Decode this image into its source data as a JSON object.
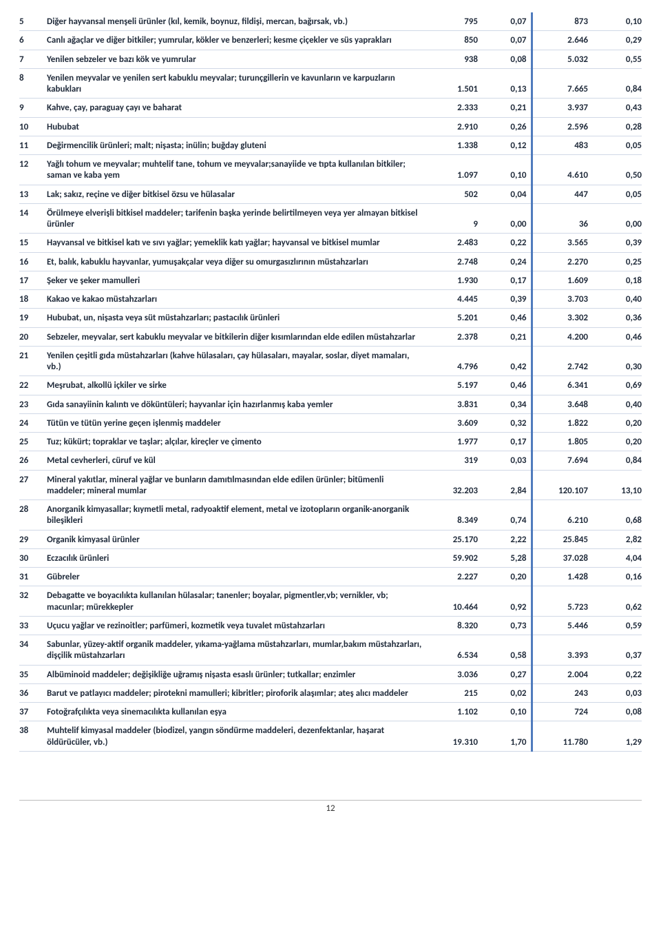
{
  "columns": {
    "desc_width": 460,
    "val_width": 82
  },
  "text_color": "#1f2a3a",
  "border_color": "#d0d8e6",
  "stripe_color": "#4f7bbd",
  "page_number": "12",
  "rows": [
    {
      "n": "5",
      "desc": "Diğer hayvansal menşeli ürünler (kıl, kemik, boynuz, fildişi, mercan, bağırsak, vb.)",
      "v1": "795",
      "v2": "0,07",
      "v3": "873",
      "v4": "0,10"
    },
    {
      "n": "6",
      "desc": "Canlı ağaçlar ve diğer bitkiler; yumrular, kökler ve benzerleri; kesme çiçekler ve süs yaprakları",
      "v1": "850",
      "v2": "0,07",
      "v3": "2.646",
      "v4": "0,29"
    },
    {
      "n": "7",
      "desc": "Yenilen sebzeler ve bazı kök ve yumrular",
      "v1": "938",
      "v2": "0,08",
      "v3": "5.032",
      "v4": "0,55"
    },
    {
      "n": "8",
      "desc": "Yenilen meyvalar ve yenilen sert kabuklu meyvalar; turunçgillerin ve kavunların ve karpuzların kabukları",
      "v1": "1.501",
      "v2": "0,13",
      "v3": "7.665",
      "v4": "0,84"
    },
    {
      "n": "9",
      "desc": "Kahve, çay, paraguay çayı ve baharat",
      "v1": "2.333",
      "v2": "0,21",
      "v3": "3.937",
      "v4": "0,43"
    },
    {
      "n": "10",
      "desc": "Hububat",
      "v1": "2.910",
      "v2": "0,26",
      "v3": "2.596",
      "v4": "0,28"
    },
    {
      "n": "11",
      "desc": "Değirmencilik ürünleri; malt; nişasta; inülin; buğday gluteni",
      "v1": "1.338",
      "v2": "0,12",
      "v3": "483",
      "v4": "0,05"
    },
    {
      "n": "12",
      "desc": "Yağlı tohum ve meyvalar; muhtelif tane, tohum ve meyvalar;sanayiide ve tıpta kullanılan bitkiler; saman ve kaba yem",
      "v1": "1.097",
      "v2": "0,10",
      "v3": "4.610",
      "v4": "0,50"
    },
    {
      "n": "13",
      "desc": "Lak; sakız, reçine ve diğer bitkisel özsu ve hülasalar",
      "v1": "502",
      "v2": "0,04",
      "v3": "447",
      "v4": "0,05"
    },
    {
      "n": "14",
      "desc": "Örülmeye elverişli bitkisel maddeler; tarifenin başka yerinde belirtilmeyen veya yer almayan bitkisel ürünler",
      "v1": "9",
      "v2": "0,00",
      "v3": "36",
      "v4": "0,00"
    },
    {
      "n": "15",
      "desc": "Hayvansal ve bitkisel katı ve sıvı yağlar; yemeklik katı yağlar; hayvansal ve bitkisel mumlar",
      "v1": "2.483",
      "v2": "0,22",
      "v3": "3.565",
      "v4": "0,39"
    },
    {
      "n": "16",
      "desc": "Et, balık, kabuklu hayvanlar, yumuşakçalar veya diğer su omurgasızlırının müstahzarları",
      "v1": "2.748",
      "v2": "0,24",
      "v3": "2.270",
      "v4": "0,25"
    },
    {
      "n": "17",
      "desc": "Şeker ve şeker mamulleri",
      "v1": "1.930",
      "v2": "0,17",
      "v3": "1.609",
      "v4": "0,18"
    },
    {
      "n": "18",
      "desc": "Kakao ve kakao müstahzarları",
      "v1": "4.445",
      "v2": "0,39",
      "v3": "3.703",
      "v4": "0,40"
    },
    {
      "n": "19",
      "desc": "Hububat, un, nişasta veya süt müstahzarları; pastacılık ürünleri",
      "v1": "5.201",
      "v2": "0,46",
      "v3": "3.302",
      "v4": "0,36"
    },
    {
      "n": "20",
      "desc": "Sebzeler, meyvalar, sert kabuklu meyvalar ve bitkilerin diğer kısımlarından elde edilen müstahzarlar",
      "v1": "2.378",
      "v2": "0,21",
      "v3": "4.200",
      "v4": "0,46"
    },
    {
      "n": "21",
      "desc": "Yenilen çeşitli gıda müstahzarları (kahve hülasaları, çay hülasaları, mayalar, soslar, diyet mamaları, vb.)",
      "v1": "4.796",
      "v2": "0,42",
      "v3": "2.742",
      "v4": "0,30"
    },
    {
      "n": "22",
      "desc": "Meşrubat, alkollü içkiler ve sirke",
      "v1": "5.197",
      "v2": "0,46",
      "v3": "6.341",
      "v4": "0,69"
    },
    {
      "n": "23",
      "desc": "Gıda sanayiinin kalıntı ve döküntüleri; hayvanlar için hazırlanmış kaba yemler",
      "v1": "3.831",
      "v2": "0,34",
      "v3": "3.648",
      "v4": "0,40"
    },
    {
      "n": "24",
      "desc": "Tütün ve tütün yerine geçen işlenmiş maddeler",
      "v1": "3.609",
      "v2": "0,32",
      "v3": "1.822",
      "v4": "0,20"
    },
    {
      "n": "25",
      "desc": "Tuz; kükürt; topraklar ve taşlar; alçılar, kireçler ve çimento",
      "v1": "1.977",
      "v2": "0,17",
      "v3": "1.805",
      "v4": "0,20"
    },
    {
      "n": "26",
      "desc": "Metal cevherleri, cüruf ve kül",
      "v1": "319",
      "v2": "0,03",
      "v3": "7.694",
      "v4": "0,84"
    },
    {
      "n": "27",
      "desc": "Mineral yakıtlar, mineral yağlar ve bunların damıtılmasından elde edilen ürünler; bitümenli maddeler; mineral mumlar",
      "v1": "32.203",
      "v2": "2,84",
      "v3": "120.107",
      "v4": "13,10"
    },
    {
      "n": "28",
      "desc": "Anorganik kimyasallar; kıymetli metal, radyoaktif element, metal ve izotopların organik-anorganik bileşikleri",
      "v1": "8.349",
      "v2": "0,74",
      "v3": "6.210",
      "v4": "0,68"
    },
    {
      "n": "29",
      "desc": "Organik kimyasal ürünler",
      "v1": "25.170",
      "v2": "2,22",
      "v3": "25.845",
      "v4": "2,82"
    },
    {
      "n": "30",
      "desc": "Eczacılık ürünleri",
      "v1": "59.902",
      "v2": "5,28",
      "v3": "37.028",
      "v4": "4,04"
    },
    {
      "n": "31",
      "desc": "Gübreler",
      "v1": "2.227",
      "v2": "0,20",
      "v3": "1.428",
      "v4": "0,16"
    },
    {
      "n": "32",
      "desc": "Debagatte ve boyacılıkta kullanılan hülasalar; tanenler; boyalar, pigmentler,vb; vernikler, vb; macunlar; mürekkepler",
      "v1": "10.464",
      "v2": "0,92",
      "v3": "5.723",
      "v4": "0,62"
    },
    {
      "n": "33",
      "desc": "Uçucu yağlar ve rezinoitler; parfümeri, kozmetik veya tuvalet müstahzarları",
      "v1": "8.320",
      "v2": "0,73",
      "v3": "5.446",
      "v4": "0,59"
    },
    {
      "n": "34",
      "desc": "Sabunlar, yüzey-aktif organik maddeler, yıkama-yağlama müstahzarları, mumlar,bakım müstahzarları, dişçilik müstahzarları",
      "v1": "6.534",
      "v2": "0,58",
      "v3": "3.393",
      "v4": "0,37"
    },
    {
      "n": "35",
      "desc": "Albüminoid maddeler; değişikliğe uğramış nişasta esaslı ürünler; tutkallar; enzimler",
      "v1": "3.036",
      "v2": "0,27",
      "v3": "2.004",
      "v4": "0,22"
    },
    {
      "n": "36",
      "desc": "Barut ve patlayıcı maddeler; pirotekni mamulleri; kibritler; piroforik alaşımlar; ateş alıcı maddeler",
      "v1": "215",
      "v2": "0,02",
      "v3": "243",
      "v4": "0,03"
    },
    {
      "n": "37",
      "desc": "Fotoğrafçılıkta veya sinemacılıkta kullanılan eşya",
      "v1": "1.102",
      "v2": "0,10",
      "v3": "724",
      "v4": "0,08"
    },
    {
      "n": "38",
      "desc": "Muhtelif kimyasal maddeler (biodizel, yangın söndürme maddeleri, dezenfektanlar, haşarat öldürücüler, vb.)",
      "v1": "19.310",
      "v2": "1,70",
      "v3": "11.780",
      "v4": "1,29"
    }
  ]
}
